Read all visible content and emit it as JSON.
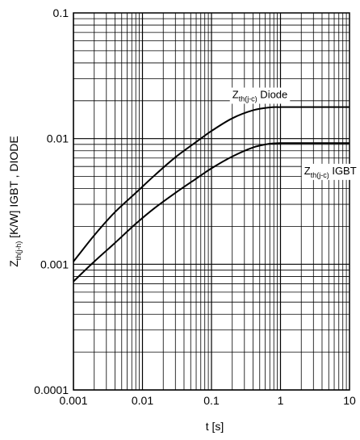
{
  "chart_data": {
    "type": "line",
    "xscale": "log",
    "yscale": "log",
    "xlim": [
      0.001,
      10
    ],
    "ylim": [
      0.0001,
      0.1
    ],
    "grid": true,
    "xlabel": "t  [s]",
    "ylabel": {
      "main": "Z",
      "sub": "th(j-h)",
      "rest": "  [K/W]   IGBT , DIODE"
    },
    "xticks": [
      {
        "value": 0.001,
        "label": "0.001"
      },
      {
        "value": 0.01,
        "label": "0.01"
      },
      {
        "value": 0.1,
        "label": "0.1"
      },
      {
        "value": 1,
        "label": "1"
      },
      {
        "value": 10,
        "label": "10"
      }
    ],
    "yticks": [
      {
        "value": 0.0001,
        "label": "0.0001"
      },
      {
        "value": 0.001,
        "label": "0.001"
      },
      {
        "value": 0.01,
        "label": "0.01"
      },
      {
        "value": 0.1,
        "label": "0.1"
      }
    ],
    "series": [
      {
        "label": {
          "main": "Z",
          "sub": "th(j-c)",
          "rest": " Diode"
        },
        "label_at": {
          "x": 0.2,
          "y": 0.021
        },
        "x": [
          0.001,
          0.002,
          0.004,
          0.008,
          0.015,
          0.03,
          0.06,
          0.1,
          0.2,
          0.4,
          0.7,
          1,
          2,
          5,
          10
        ],
        "y": [
          0.00105,
          0.0017,
          0.0026,
          0.0037,
          0.0051,
          0.0071,
          0.0094,
          0.0115,
          0.0145,
          0.0168,
          0.0177,
          0.0178,
          0.0178,
          0.0178,
          0.0178
        ]
      },
      {
        "label": {
          "main": "Z",
          "sub": "th(j-c)",
          "rest": " IGBT"
        },
        "label_at": {
          "x": 2.2,
          "y": 0.0052
        },
        "x": [
          0.001,
          0.002,
          0.004,
          0.008,
          0.015,
          0.03,
          0.06,
          0.1,
          0.2,
          0.4,
          0.7,
          1,
          2,
          5,
          10
        ],
        "y": [
          0.00073,
          0.00105,
          0.00148,
          0.0021,
          0.0028,
          0.0037,
          0.0048,
          0.0058,
          0.0072,
          0.0085,
          0.0091,
          0.0092,
          0.0092,
          0.0092,
          0.0092
        ]
      }
    ]
  }
}
